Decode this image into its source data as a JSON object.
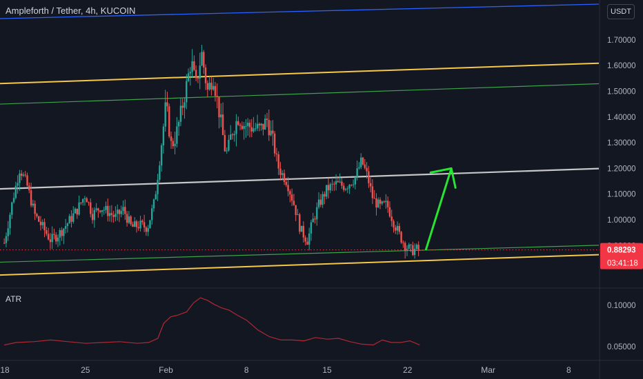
{
  "header": {
    "title": "Ampleforth / Tether, 4h, KUCOIN"
  },
  "currency_button": {
    "label": "USDT"
  },
  "indicator": {
    "label": "ATR"
  },
  "colors": {
    "background": "#131722",
    "up": "#26a69a",
    "down": "#ef5350",
    "price_line": "#f23645",
    "atr_line": "#b22833",
    "channel_yellow": "#f7c948",
    "channel_green": "#3fa34d",
    "channel_gray": "#c7c7c7",
    "channel_blue": "#2962ff",
    "arrow": "#27e532"
  },
  "chart_data": [
    {
      "type": "candlestick",
      "title": "Ampleforth / Tether, 4h, KUCOIN",
      "y_ticks": [
        "0.90000",
        "1.00000",
        "1.10000",
        "1.20000",
        "1.30000",
        "1.40000",
        "1.50000",
        "1.60000",
        "1.70000"
      ],
      "x_ticks": [
        "18",
        "25",
        "Feb",
        "8",
        "15",
        "22",
        "Mar",
        "8"
      ],
      "ylim": [
        0.84,
        1.78
      ],
      "last_price": "0.88293",
      "countdown": "03:41:18",
      "path": [
        [
          17.95,
          0.91
        ],
        [
          18.7,
          1.08
        ],
        [
          19.3,
          1.2
        ],
        [
          19.9,
          1.14
        ],
        [
          20.6,
          1.02
        ],
        [
          21.3,
          0.97
        ],
        [
          22.0,
          0.92
        ],
        [
          22.8,
          0.95
        ],
        [
          23.5,
          0.99
        ],
        [
          24.3,
          1.04
        ],
        [
          25.0,
          1.1
        ],
        [
          25.6,
          1.02
        ],
        [
          26.3,
          1.05
        ],
        [
          27.0,
          1.03
        ],
        [
          27.6,
          1.01
        ],
        [
          28.3,
          1.04
        ],
        [
          29.0,
          0.97
        ],
        [
          29.7,
          0.98
        ],
        [
          30.4,
          0.97
        ],
        [
          31.0,
          1.07
        ],
        [
          31.5,
          1.25
        ],
        [
          32.0,
          1.45
        ],
        [
          32.5,
          1.28
        ],
        [
          33.0,
          1.35
        ],
        [
          33.6,
          1.48
        ],
        [
          34.2,
          1.62
        ],
        [
          34.6,
          1.52
        ],
        [
          35.1,
          1.65
        ],
        [
          35.6,
          1.5
        ],
        [
          36.1,
          1.56
        ],
        [
          36.7,
          1.4
        ],
        [
          37.2,
          1.25
        ],
        [
          37.8,
          1.35
        ],
        [
          38.3,
          1.4
        ],
        [
          38.8,
          1.37
        ],
        [
          39.5,
          1.36
        ],
        [
          40.2,
          1.35
        ],
        [
          40.8,
          1.39
        ],
        [
          41.3,
          1.3
        ],
        [
          41.8,
          1.2
        ],
        [
          42.5,
          1.15
        ],
        [
          43.2,
          1.05
        ],
        [
          43.7,
          0.96
        ],
        [
          44.3,
          0.92
        ],
        [
          44.8,
          1.0
        ],
        [
          45.3,
          1.06
        ],
        [
          46.0,
          1.12
        ],
        [
          46.8,
          1.14
        ],
        [
          47.6,
          1.13
        ],
        [
          48.4,
          1.16
        ],
        [
          49.0,
          1.23
        ],
        [
          49.5,
          1.17
        ],
        [
          50.0,
          1.08
        ],
        [
          50.6,
          1.05
        ],
        [
          51.2,
          1.06
        ],
        [
          51.8,
          0.99
        ],
        [
          52.3,
          0.94
        ],
        [
          52.8,
          0.9
        ],
        [
          53.3,
          0.88
        ],
        [
          53.7,
          0.885
        ],
        [
          54.05,
          0.883
        ]
      ],
      "annotations": {
        "channel_lines": [
          {
            "color": "yellow",
            "y_at_day_18": 1.53,
            "y_at_day_57": 1.59
          },
          {
            "color": "green",
            "y_at_day_18": 1.45,
            "y_at_day_57": 1.51
          },
          {
            "color": "gray",
            "y_at_day_18": 1.12,
            "y_at_day_57": 1.18
          },
          {
            "color": "green",
            "y_at_day_18": 0.835,
            "y_at_day_57": 0.885
          },
          {
            "color": "yellow",
            "y_at_day_18": 0.785,
            "y_at_day_57": 0.845
          }
        ],
        "arrow": {
          "from": [
            54.6,
            0.885
          ],
          "to": [
            56.8,
            1.2
          ]
        }
      }
    },
    {
      "type": "line",
      "title": "ATR",
      "y_ticks": [
        "0.05000",
        "0.10000"
      ],
      "ylim": [
        0.045,
        0.115
      ],
      "x": [
        17.95,
        19.0,
        20.5,
        22.0,
        23.5,
        25.0,
        26.5,
        28.0,
        29.5,
        30.5,
        31.3,
        31.8,
        32.4,
        33.0,
        33.8,
        34.4,
        35.0,
        35.6,
        36.2,
        36.8,
        37.5,
        38.2,
        39.0,
        40.0,
        41.0,
        42.0,
        43.0,
        44.0,
        45.0,
        46.0,
        47.0,
        48.0,
        49.0,
        50.0,
        50.8,
        51.6,
        52.4,
        53.2,
        54.05
      ],
      "values": [
        0.052,
        0.055,
        0.056,
        0.058,
        0.056,
        0.054,
        0.055,
        0.056,
        0.054,
        0.055,
        0.06,
        0.078,
        0.086,
        0.088,
        0.092,
        0.103,
        0.109,
        0.106,
        0.101,
        0.097,
        0.094,
        0.088,
        0.082,
        0.07,
        0.062,
        0.058,
        0.058,
        0.057,
        0.061,
        0.059,
        0.06,
        0.056,
        0.053,
        0.052,
        0.058,
        0.055,
        0.055,
        0.057,
        0.052
      ]
    }
  ]
}
